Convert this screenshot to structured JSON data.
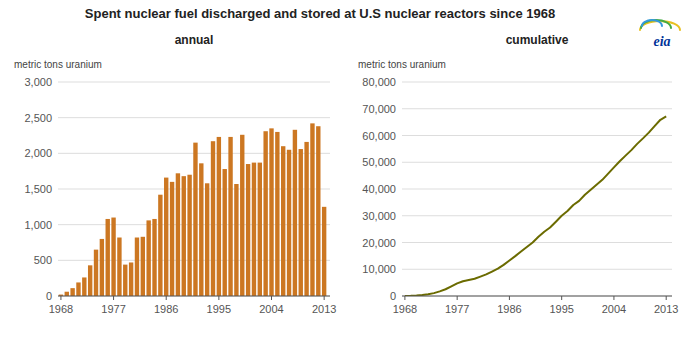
{
  "title": "Spent nuclear fuel discharged and stored at U.S nuclear reactors since 1968",
  "annotation": "eia",
  "chart_data": [
    {
      "type": "bar",
      "title": "annual",
      "y_label": "metric tons uranium",
      "color": "#CC7722",
      "grid": true,
      "x": [
        1968,
        1969,
        1970,
        1971,
        1972,
        1973,
        1974,
        1975,
        1976,
        1977,
        1978,
        1979,
        1980,
        1981,
        1982,
        1983,
        1984,
        1985,
        1986,
        1987,
        1988,
        1989,
        1990,
        1991,
        1992,
        1993,
        1994,
        1995,
        1996,
        1997,
        1998,
        1999,
        2000,
        2001,
        2002,
        2003,
        2004,
        2005,
        2006,
        2007,
        2008,
        2009,
        2010,
        2011,
        2012,
        2013
      ],
      "values": [
        20,
        60,
        110,
        190,
        260,
        430,
        650,
        800,
        1080,
        1100,
        820,
        440,
        470,
        820,
        830,
        1060,
        1080,
        1420,
        1660,
        1600,
        1720,
        1680,
        1700,
        2150,
        1860,
        1580,
        2170,
        2230,
        1780,
        2230,
        1570,
        2260,
        1850,
        1870,
        1870,
        2310,
        2350,
        2300,
        2100,
        2050,
        2330,
        2060,
        2160,
        2420,
        2380,
        1250
      ],
      "xlim": [
        1967.5,
        2014
      ],
      "xticks": [
        1968,
        1977,
        1986,
        1995,
        2004,
        2013
      ],
      "ylim": [
        0,
        3000
      ],
      "yticks": [
        0,
        500,
        {
          "value": 1000,
          "label": "1,000"
        },
        {
          "value": 1500,
          "label": "1,500"
        },
        {
          "value": 2000,
          "label": "2,000"
        },
        {
          "value": 2500,
          "label": "2,500"
        },
        {
          "value": 3000,
          "label": "3,000"
        }
      ]
    },
    {
      "type": "line",
      "title": "cumulative",
      "y_label": "metric tons uranium",
      "color": "#6B6B00",
      "grid": true,
      "x": [
        1968,
        1969,
        1970,
        1971,
        1972,
        1973,
        1974,
        1975,
        1976,
        1977,
        1978,
        1979,
        1980,
        1981,
        1982,
        1983,
        1984,
        1985,
        1986,
        1987,
        1988,
        1989,
        1990,
        1991,
        1992,
        1993,
        1994,
        1995,
        1996,
        1997,
        1998,
        1999,
        2000,
        2001,
        2002,
        2003,
        2004,
        2005,
        2006,
        2007,
        2008,
        2009,
        2010,
        2011,
        2012,
        2013
      ],
      "values": [
        20,
        80,
        190,
        380,
        640,
        1070,
        1720,
        2520,
        3600,
        4700,
        5520,
        5960,
        6430,
        7250,
        8080,
        9140,
        10220,
        11640,
        13300,
        14900,
        16620,
        18300,
        20000,
        22150,
        24010,
        25590,
        27760,
        29990,
        31770,
        34000,
        35570,
        37830,
        39680,
        41550,
        43420,
        45730,
        48080,
        50380,
        52480,
        54530,
        56860,
        58920,
        61080,
        63500,
        65880,
        67130
      ],
      "xlim": [
        1967.5,
        2014
      ],
      "xticks": [
        1968,
        1977,
        1986,
        1995,
        2004,
        2013
      ],
      "ylim": [
        0,
        80000
      ],
      "yticks": [
        0,
        {
          "value": 10000,
          "label": "10,000"
        },
        {
          "value": 20000,
          "label": "20,000"
        },
        {
          "value": 30000,
          "label": "30,000"
        },
        {
          "value": 40000,
          "label": "40,000"
        },
        {
          "value": 50000,
          "label": "50,000"
        },
        {
          "value": 60000,
          "label": "60,000"
        },
        {
          "value": 70000,
          "label": "70,000"
        },
        {
          "value": 80000,
          "label": "80,000"
        }
      ]
    }
  ]
}
